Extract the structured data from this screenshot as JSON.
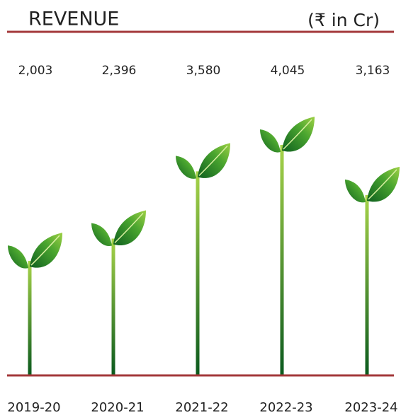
{
  "chart_data": {
    "type": "plant-bar",
    "title": "REVENUE",
    "subtitle": "(₹ in Cr)",
    "categories": [
      "2019-20",
      "2020-21",
      "2021-22",
      "2022-23",
      "2023-24"
    ],
    "values": [
      2003,
      2396,
      3580,
      4045,
      3163
    ],
    "value_labels": [
      "2,003",
      "2,396",
      "3,580",
      "4,045",
      "3,163"
    ],
    "color": "#3d8f2a"
  }
}
